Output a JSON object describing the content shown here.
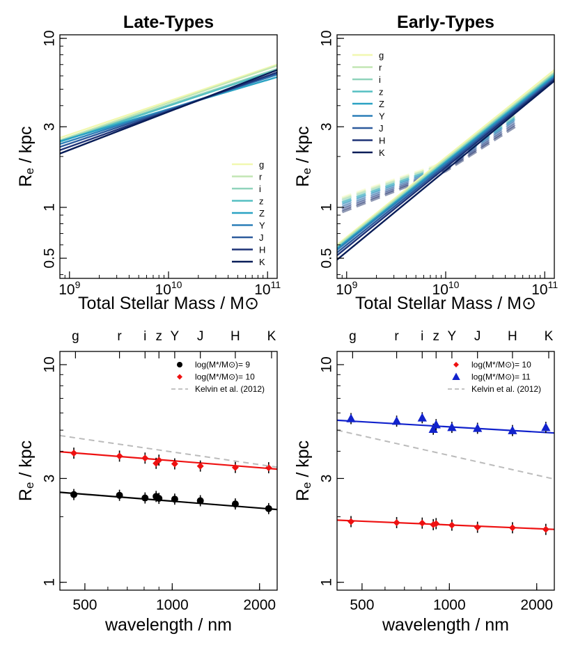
{
  "colors": {
    "g": "#f1f8b0",
    "r": "#c2e6b4",
    "i": "#8fd3bb",
    "z": "#55bfc2",
    "Z": "#2aa2c3",
    "Y": "#2c7fb8",
    "J": "#2c5a9c",
    "H": "#1e3377",
    "K": "#081d58",
    "red": "#ee1111",
    "blue": "#1122cc",
    "black": "#000000",
    "kelvin": "#bbbbbb"
  },
  "chart_data": [
    {
      "type": "line",
      "title": "Late-Types",
      "xlabel": "Total Stellar Mass / M⊙",
      "ylabel": "Re / kpc",
      "x_scale": "log",
      "y_scale": "log",
      "xlim": [
        800000000.0,
        125000000000.0
      ],
      "ylim": [
        0.38,
        10.5
      ],
      "x_ticks": [
        {
          "v": 1000000000.0,
          "m": "10",
          "e": "9"
        },
        {
          "v": 10000000000.0,
          "m": "10",
          "e": "10"
        },
        {
          "v": 100000000000.0,
          "m": "10",
          "e": "11"
        }
      ],
      "y_ticks": [
        {
          "v": 0.5,
          "label": "0.5"
        },
        {
          "v": 1,
          "label": "1"
        },
        {
          "v": 3,
          "label": "3"
        },
        {
          "v": 10,
          "label": "10"
        }
      ],
      "legend_position": "bottom-right",
      "series": [
        {
          "name": "g",
          "x": [
            800000000.0,
            125000000000.0
          ],
          "y": [
            2.58,
            7.0
          ]
        },
        {
          "name": "r",
          "x": [
            800000000.0,
            125000000000.0
          ],
          "y": [
            2.5,
            6.9
          ]
        },
        {
          "name": "i",
          "x": [
            800000000.0,
            125000000000.0
          ],
          "y": [
            2.47,
            6.6
          ]
        },
        {
          "name": "z",
          "x": [
            800000000.0,
            125000000000.0
          ],
          "y": [
            2.44,
            6.5
          ]
        },
        {
          "name": "Z",
          "x": [
            800000000.0,
            125000000000.0
          ],
          "y": [
            2.46,
            5.9
          ]
        },
        {
          "name": "Y",
          "x": [
            800000000.0,
            125000000000.0
          ],
          "y": [
            2.37,
            6.1
          ]
        },
        {
          "name": "J",
          "x": [
            800000000.0,
            125000000000.0
          ],
          "y": [
            2.28,
            6.2
          ]
        },
        {
          "name": "H",
          "x": [
            800000000.0,
            125000000000.0
          ],
          "y": [
            2.18,
            6.3
          ]
        },
        {
          "name": "K",
          "x": [
            800000000.0,
            125000000000.0
          ],
          "y": [
            2.08,
            6.5
          ]
        }
      ]
    },
    {
      "type": "line",
      "title": "Early-Types",
      "xlabel": "Total Stellar Mass / M⊙",
      "ylabel": "Re / kpc",
      "x_scale": "log",
      "y_scale": "log",
      "xlim": [
        800000000.0,
        125000000000.0
      ],
      "ylim": [
        0.38,
        10.5
      ],
      "x_ticks": [
        {
          "v": 1000000000.0,
          "m": "10",
          "e": "9"
        },
        {
          "v": 10000000000.0,
          "m": "10",
          "e": "10"
        },
        {
          "v": 100000000000.0,
          "m": "10",
          "e": "11"
        }
      ],
      "y_ticks": [
        {
          "v": 0.5,
          "label": "0.5"
        },
        {
          "v": 1,
          "label": "1"
        },
        {
          "v": 3,
          "label": "3"
        },
        {
          "v": 10,
          "label": "10"
        }
      ],
      "legend_position": "top-left",
      "series": [
        {
          "name": "g",
          "x": [
            800000000.0,
            125000000000.0
          ],
          "y": [
            0.6,
            6.5
          ]
        },
        {
          "name": "r",
          "x": [
            800000000.0,
            125000000000.0
          ],
          "y": [
            0.59,
            6.3
          ]
        },
        {
          "name": "i",
          "x": [
            800000000.0,
            125000000000.0
          ],
          "y": [
            0.58,
            6.2
          ]
        },
        {
          "name": "z",
          "x": [
            800000000.0,
            125000000000.0
          ],
          "y": [
            0.57,
            6.1
          ]
        },
        {
          "name": "Z",
          "x": [
            800000000.0,
            125000000000.0
          ],
          "y": [
            0.57,
            6.0
          ]
        },
        {
          "name": "Y",
          "x": [
            800000000.0,
            125000000000.0
          ],
          "y": [
            0.56,
            5.9
          ]
        },
        {
          "name": "J",
          "x": [
            800000000.0,
            125000000000.0
          ],
          "y": [
            0.54,
            5.8
          ]
        },
        {
          "name": "H",
          "x": [
            800000000.0,
            125000000000.0
          ],
          "y": [
            0.52,
            5.7
          ]
        },
        {
          "name": "K",
          "x": [
            800000000.0,
            125000000000.0
          ],
          "y": [
            0.49,
            5.6
          ]
        }
      ],
      "dashed_series": [
        {
          "name": "g",
          "x": [
            900000000.0,
            10000000000.0,
            50000000000.0
          ],
          "y": [
            1.14,
            1.85,
            3.6
          ]
        },
        {
          "name": "r",
          "x": [
            900000000.0,
            10000000000.0,
            50000000000.0
          ],
          "y": [
            1.12,
            1.82,
            3.5
          ]
        },
        {
          "name": "i",
          "x": [
            900000000.0,
            10000000000.0,
            50000000000.0
          ],
          "y": [
            1.1,
            1.8,
            3.45
          ]
        },
        {
          "name": "z",
          "x": [
            900000000.0,
            10000000000.0,
            50000000000.0
          ],
          "y": [
            1.07,
            1.77,
            3.4
          ]
        },
        {
          "name": "Z",
          "x": [
            900000000.0,
            10000000000.0,
            50000000000.0
          ],
          "y": [
            1.06,
            1.76,
            3.35
          ]
        },
        {
          "name": "Y",
          "x": [
            900000000.0,
            10000000000.0,
            50000000000.0
          ],
          "y": [
            1.03,
            1.73,
            3.3
          ]
        },
        {
          "name": "J",
          "x": [
            900000000.0,
            10000000000.0,
            50000000000.0
          ],
          "y": [
            1.0,
            1.7,
            3.2
          ]
        },
        {
          "name": "H",
          "x": [
            900000000.0,
            10000000000.0,
            50000000000.0
          ],
          "y": [
            0.97,
            1.67,
            3.1
          ]
        },
        {
          "name": "K",
          "x": [
            900000000.0,
            10000000000.0,
            50000000000.0
          ],
          "y": [
            0.94,
            1.64,
            3.0
          ]
        }
      ]
    },
    {
      "type": "scatter",
      "xlabel": "wavelength / nm",
      "ylabel": "Re / kpc",
      "x_scale": "log",
      "y_scale": "log",
      "xlim": [
        410,
        2300
      ],
      "ylim": [
        0.92,
        11.5
      ],
      "x_ticks": [
        {
          "v": 500,
          "label": "500"
        },
        {
          "v": 1000,
          "label": "1000"
        },
        {
          "v": 2000,
          "label": "2000"
        }
      ],
      "y_ticks": [
        {
          "v": 1,
          "label": "1"
        },
        {
          "v": 3,
          "label": "3"
        },
        {
          "v": 10,
          "label": "10"
        }
      ],
      "band_ticks": [
        {
          "v": 464,
          "label": "g"
        },
        {
          "v": 658,
          "label": "r"
        },
        {
          "v": 806,
          "label": "i"
        },
        {
          "v": 900,
          "label": "z"
        },
        {
          "v": 1020,
          "label": "Y"
        },
        {
          "v": 1250,
          "label": "J"
        },
        {
          "v": 1650,
          "label": "H"
        },
        {
          "v": 2200,
          "label": "K"
        }
      ],
      "legend_position": "top-right",
      "series": [
        {
          "name": "log(M*/M⊙)= 9",
          "marker": "circle",
          "color": "black",
          "x": [
            458,
            658,
            806,
            880,
            900,
            1020,
            1250,
            1650,
            2150
          ],
          "y": [
            2.53,
            2.51,
            2.44,
            2.48,
            2.43,
            2.41,
            2.37,
            2.29,
            2.18
          ],
          "fit": {
            "x": [
              410,
              2300
            ],
            "y": [
              2.59,
              2.16
            ]
          }
        },
        {
          "name": "log(M*/M⊙)= 10",
          "marker": "diamond",
          "color": "red",
          "x": [
            458,
            658,
            806,
            880,
            900,
            1020,
            1250,
            1650,
            2150
          ],
          "y": [
            3.92,
            3.8,
            3.72,
            3.52,
            3.64,
            3.5,
            3.42,
            3.37,
            3.36
          ],
          "fit": {
            "x": [
              410,
              2300
            ],
            "y": [
              3.98,
              3.31
            ]
          }
        },
        {
          "name": "Kelvin et al. (2012)",
          "marker": "dashed-line",
          "color": "kelvin",
          "x": [
            410,
            2300
          ],
          "y": [
            4.72,
            3.38
          ]
        }
      ]
    },
    {
      "type": "scatter",
      "xlabel": "wavelength / nm",
      "ylabel": "Re / kpc",
      "x_scale": "log",
      "y_scale": "log",
      "xlim": [
        410,
        2300
      ],
      "ylim": [
        0.92,
        11.5
      ],
      "x_ticks": [
        {
          "v": 500,
          "label": "500"
        },
        {
          "v": 1000,
          "label": "1000"
        },
        {
          "v": 2000,
          "label": "2000"
        }
      ],
      "y_ticks": [
        {
          "v": 1,
          "label": "1"
        },
        {
          "v": 3,
          "label": "3"
        },
        {
          "v": 10,
          "label": "10"
        }
      ],
      "band_ticks": [
        {
          "v": 464,
          "label": "g"
        },
        {
          "v": 658,
          "label": "r"
        },
        {
          "v": 806,
          "label": "i"
        },
        {
          "v": 900,
          "label": "z"
        },
        {
          "v": 1020,
          "label": "Y"
        },
        {
          "v": 1250,
          "label": "J"
        },
        {
          "v": 1650,
          "label": "H"
        },
        {
          "v": 2200,
          "label": "K"
        }
      ],
      "legend_position": "top-right",
      "series": [
        {
          "name": "log(M*/M⊙)= 10",
          "marker": "diamond",
          "color": "red",
          "x": [
            458,
            658,
            806,
            880,
            900,
            1020,
            1250,
            1650,
            2150
          ],
          "y": [
            1.9,
            1.88,
            1.87,
            1.84,
            1.86,
            1.83,
            1.79,
            1.78,
            1.75
          ],
          "fit": {
            "x": [
              410,
              2300
            ],
            "y": [
              1.93,
              1.75
            ]
          }
        },
        {
          "name": "log(M*/M⊙)= 11",
          "marker": "triangle",
          "color": "blue",
          "x": [
            458,
            658,
            806,
            880,
            900,
            1020,
            1250,
            1650,
            2150
          ],
          "y": [
            5.65,
            5.5,
            5.7,
            5.05,
            5.3,
            5.15,
            5.1,
            4.98,
            5.15
          ],
          "fit": {
            "x": [
              410,
              2300
            ],
            "y": [
              5.55,
              4.85
            ]
          }
        },
        {
          "name": "Kelvin et al. (2012)",
          "marker": "dashed-line",
          "color": "kelvin",
          "x": [
            410,
            2300
          ],
          "y": [
            5.0,
            2.98
          ]
        }
      ]
    }
  ]
}
